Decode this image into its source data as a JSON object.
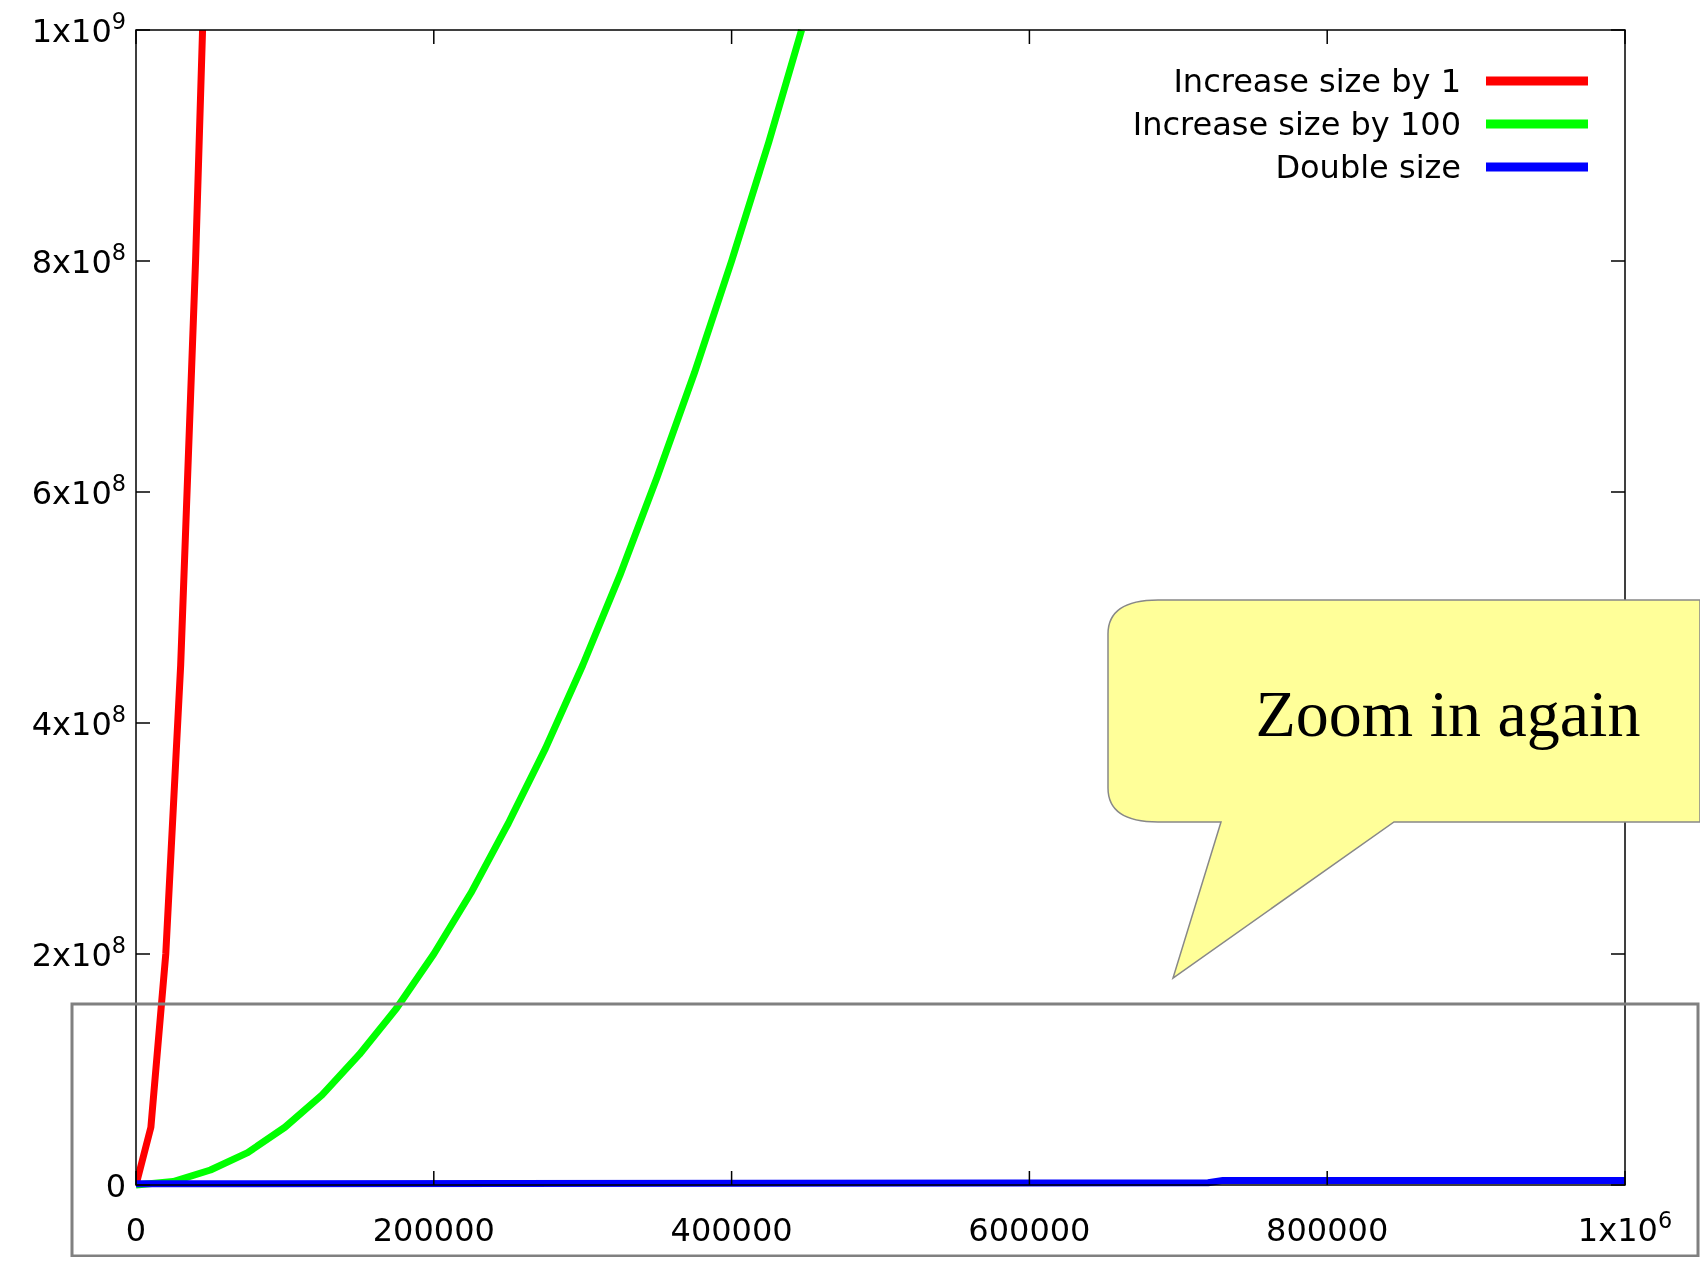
{
  "chart_data": {
    "type": "line",
    "xlim": [
      0,
      1000000
    ],
    "ylim": [
      0,
      1000000000
    ],
    "xticks": [
      0,
      200000,
      400000,
      600000,
      800000,
      {
        "value": 1000000,
        "label": "1x10$^{6}$"
      }
    ],
    "yticks": [
      0,
      {
        "value": 200000000,
        "label": "2x10$^{8}$"
      },
      {
        "value": 400000000,
        "label": "4x10$^{8}$"
      },
      {
        "value": 600000000,
        "label": "6x10$^{8}$"
      },
      {
        "value": 800000000,
        "label": "8x10$^{8}$"
      },
      {
        "value": 1000000000,
        "label": "1x10$^{9}$"
      }
    ],
    "legend": "top right",
    "grid": false,
    "line_style": "solid",
    "series": [
      {
        "name": "Increase size by 1",
        "color": "#ff0000",
        "x": [
          0,
          10000,
          20000,
          30000,
          40000,
          44700
        ],
        "values": [
          0,
          50000000,
          200000000,
          450000000,
          800000000,
          1000000000
        ]
      },
      {
        "name": "Increase size by 100",
        "color": "#00ff00",
        "x": [
          0,
          25000,
          50000,
          75000,
          100000,
          125000,
          150000,
          175000,
          200000,
          225000,
          250000,
          275000,
          300000,
          325000,
          350000,
          375000,
          400000,
          425000,
          447000
        ],
        "values": [
          0,
          3000000,
          13000000,
          28000000,
          50000000,
          78000000,
          113000000,
          153000000,
          200000000,
          253000000,
          313000000,
          378000000,
          450000000,
          528000000,
          613000000,
          703000000,
          800000000,
          903000000,
          1000000000
        ]
      },
      {
        "name": "Double size",
        "color": "#0000ff",
        "x": [
          0,
          720000,
          730000,
          1000000
        ],
        "values": [
          1000000,
          2000000,
          4000000,
          4000000
        ]
      }
    ],
    "annotations": [
      "Zoom in again"
    ]
  }
}
